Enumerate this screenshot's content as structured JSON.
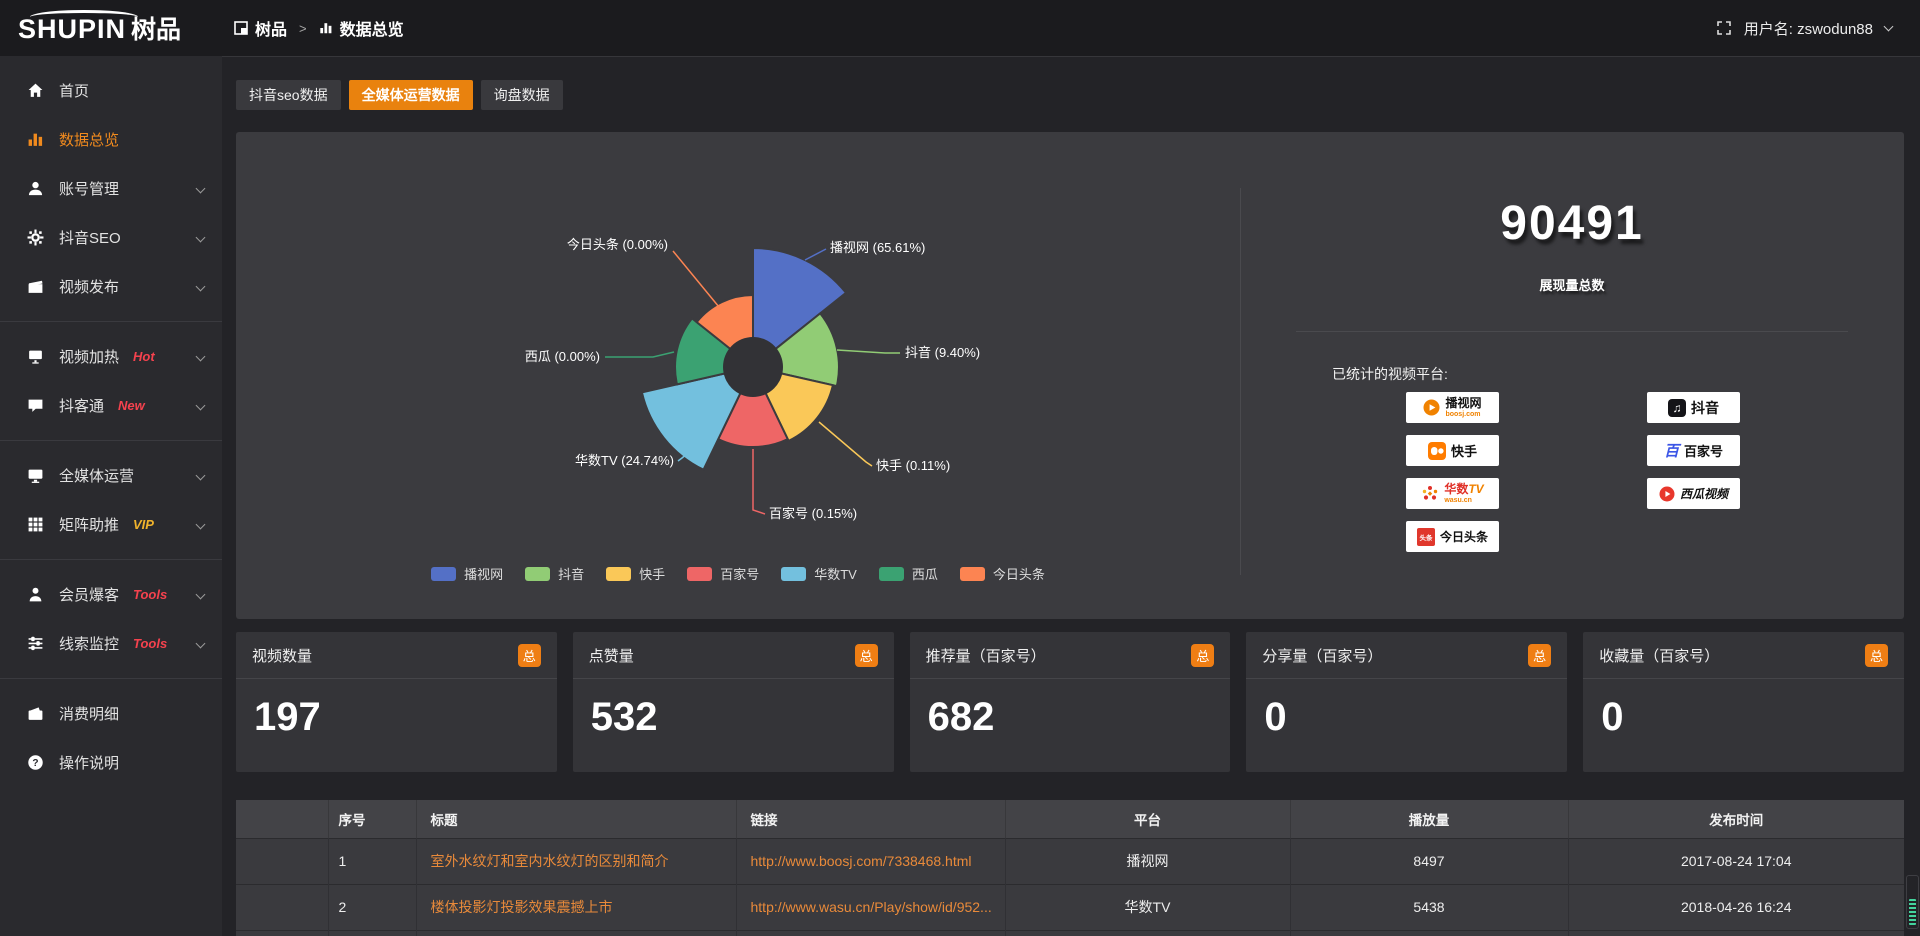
{
  "header": {
    "logo_text": "SHUPIN",
    "logo_cn": "树品",
    "breadcrumb_root": "树品",
    "breadcrumb_sep": ">",
    "breadcrumb_current": "数据总览",
    "user_label": "用户名: zswodun88"
  },
  "sidebar": {
    "items": [
      {
        "name": "home",
        "label": "首页",
        "icon": "home",
        "chevron": false,
        "active": false,
        "badge": "",
        "divider_after": false
      },
      {
        "name": "data-overview",
        "label": "数据总览",
        "icon": "bars",
        "chevron": false,
        "active": true,
        "badge": "",
        "divider_after": false
      },
      {
        "name": "account-management",
        "label": "账号管理",
        "icon": "user",
        "chevron": true,
        "active": false,
        "badge": "",
        "divider_after": false
      },
      {
        "name": "douyin-seo",
        "label": "抖音SEO",
        "icon": "gear",
        "chevron": true,
        "active": false,
        "badge": "",
        "divider_after": false
      },
      {
        "name": "video-publish",
        "label": "视频发布",
        "icon": "clapper",
        "chevron": true,
        "active": false,
        "badge": "",
        "divider_after": true
      },
      {
        "name": "video-heating",
        "label": "视频加热",
        "icon": "heat",
        "chevron": true,
        "active": false,
        "badge": "Hot",
        "badge_color": "#f5424e",
        "divider_after": false
      },
      {
        "name": "douketong",
        "label": "抖客通",
        "icon": "chat",
        "chevron": true,
        "active": false,
        "badge": "New",
        "badge_color": "#f5424e",
        "divider_after": true
      },
      {
        "name": "omni-media-operation",
        "label": "全媒体运营",
        "icon": "monitor",
        "chevron": true,
        "active": false,
        "badge": "",
        "divider_after": false
      },
      {
        "name": "matrix-boost",
        "label": "矩阵助推",
        "icon": "grid",
        "chevron": true,
        "active": false,
        "badge": "VIP",
        "badge_color": "#f0b32c",
        "divider_after": true
      },
      {
        "name": "member-baoke",
        "label": "会员爆客",
        "icon": "person",
        "chevron": true,
        "active": false,
        "badge": "Tools",
        "badge_color": "#f5424e",
        "divider_after": false
      },
      {
        "name": "lead-monitor",
        "label": "线索监控",
        "icon": "sliders",
        "chevron": true,
        "active": false,
        "badge": "Tools",
        "badge_color": "#f5424e",
        "divider_after": true
      },
      {
        "name": "consumption-detail",
        "label": "消费明细",
        "icon": "wallet",
        "chevron": false,
        "active": false,
        "badge": "",
        "divider_after": false
      },
      {
        "name": "operation-guide",
        "label": "操作说明",
        "icon": "question",
        "chevron": false,
        "active": false,
        "badge": "",
        "divider_after": false
      }
    ]
  },
  "tabs": [
    {
      "name": "tab-douyin-seo-data",
      "label": "抖音seo数据",
      "active": false
    },
    {
      "name": "tab-omni-media-data",
      "label": "全媒体运营数据",
      "active": true
    },
    {
      "name": "tab-inquiry-data",
      "label": "询盘数据",
      "active": false
    }
  ],
  "chart_data": {
    "type": "pie",
    "variant": "nightingale-rose",
    "title": "",
    "labels": [
      "播视网",
      "抖音",
      "快手",
      "百家号",
      "华数TV",
      "西瓜",
      "今日头条"
    ],
    "values_percent": [
      65.61,
      9.4,
      0.11,
      0.15,
      24.74,
      0.0,
      0.0
    ],
    "callouts": [
      "播视网 (65.61%)",
      "抖音 (9.40%)",
      "快手 (0.11%)",
      "百家号 (0.15%)",
      "华数TV (24.74%)",
      "西瓜 (0.00%)",
      "今日头条 (0.00%)"
    ],
    "colors": [
      "#5470c6",
      "#91cc75",
      "#fac858",
      "#ee6666",
      "#73c0de",
      "#3ba272",
      "#fc8452"
    ],
    "legend_position": "bottom-center",
    "legend": [
      "播视网",
      "抖音",
      "快手",
      "百家号",
      "华数TV",
      "西瓜",
      "今日头条"
    ]
  },
  "summary": {
    "total_value": "90491",
    "total_label": "展现量总数",
    "platforms_title": "已统计的视频平台:",
    "platform_col_left": [
      "播视网",
      "快手",
      "华数TV",
      "今日头条"
    ],
    "platform_col_right": [
      "抖音",
      "百家号",
      "西瓜视频"
    ],
    "platform_logo_meta": {
      "播视网": {
        "sub": "boosj.com"
      },
      "华数TV": {
        "sub": "wasu.cn"
      },
      "今日头条": {
        "icon_text": "头条"
      },
      "百家号": {
        "icon_text": "百"
      },
      "抖音": {
        "icon_text": "♫"
      }
    }
  },
  "stat_cards": [
    {
      "title": "视频数量",
      "badge": "总",
      "value": "197"
    },
    {
      "title": "点赞量",
      "badge": "总",
      "value": "532"
    },
    {
      "title": "推荐量（百家号）",
      "badge": "总",
      "value": "682"
    },
    {
      "title": "分享量（百家号）",
      "badge": "总",
      "value": "0"
    },
    {
      "title": "收藏量（百家号）",
      "badge": "总",
      "value": "0"
    }
  ],
  "table": {
    "headers": [
      "序号",
      "标题",
      "链接",
      "平台",
      "播放量",
      "发布时间"
    ],
    "rows": [
      {
        "index": "1",
        "title": "室外水纹灯和室内水纹灯的区别和简介",
        "link": "http://www.boosj.com/7338468.html",
        "platform": "播视网",
        "plays": "8497",
        "time": "2017-08-24 17:04"
      },
      {
        "index": "2",
        "title": "楼体投影灯投影效果震撼上市",
        "link": "http://www.wasu.cn/Play/show/id/952...",
        "platform": "华数TV",
        "plays": "5438",
        "time": "2018-04-26 16:24"
      }
    ]
  },
  "colors": {
    "accent": "#e9820e",
    "sidebar_active": "#f08a1e",
    "badge_total_bg": "#ef7e14",
    "hot_badge": "#f5424e",
    "vip_badge": "#f0b32c",
    "link_text": "#e98a3a",
    "panel_bg": "#3b3b3f",
    "page_bg": "#232327"
  }
}
